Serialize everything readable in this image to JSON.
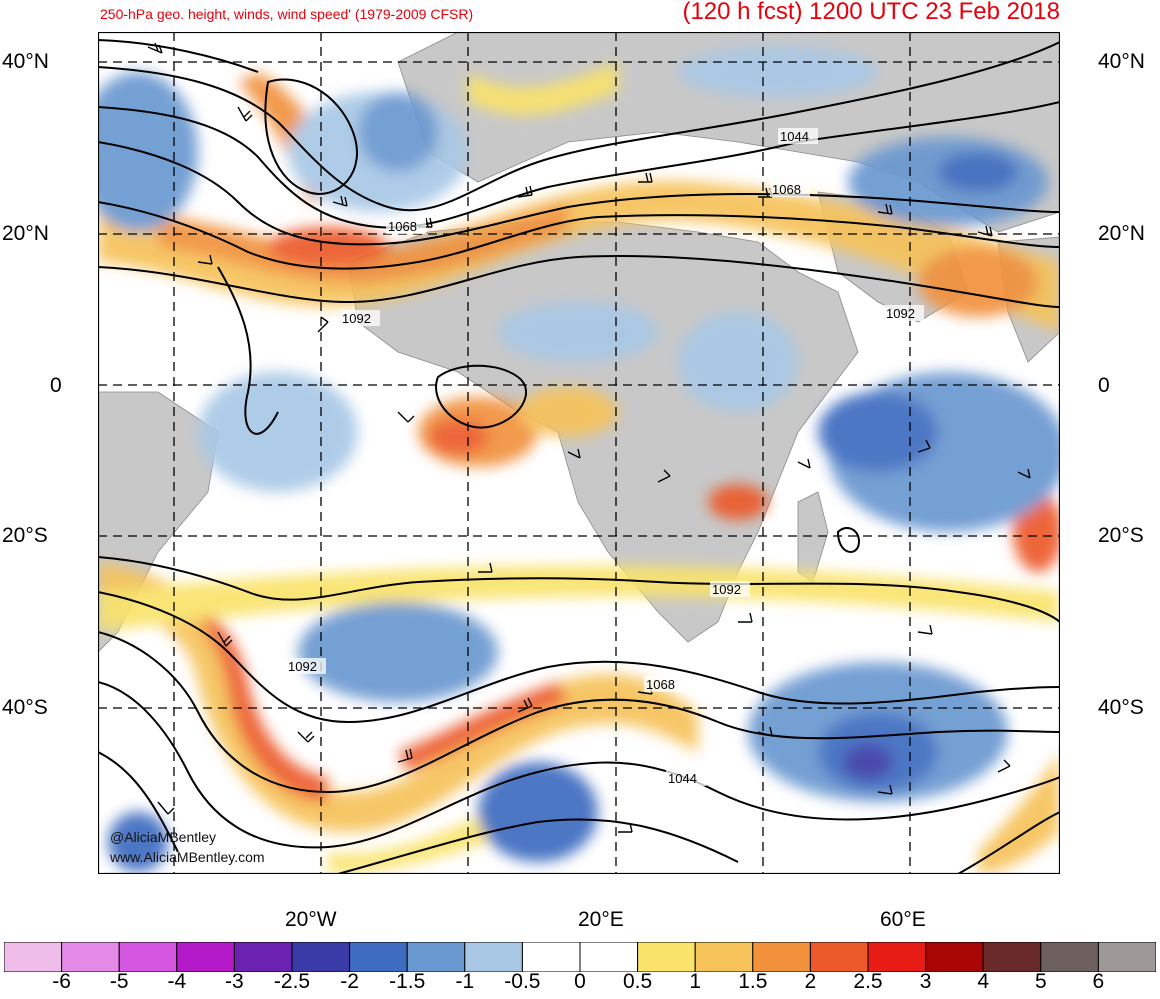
{
  "header": {
    "title_left": "250-hPa geo. height, winds, wind speed' (1979-2009 CFSR)",
    "title_right": "(120 h fcst) 1200 UTC 23 Feb 2018"
  },
  "axes": {
    "lat_labels": [
      "40°N",
      "20°N",
      "0",
      "20°S",
      "40°S"
    ],
    "lon_labels": [
      "20°W",
      "20°E",
      "60°E"
    ]
  },
  "contour_labels": [
    "1044",
    "1068",
    "1068",
    "1092",
    "1092",
    "1092",
    "1092",
    "1068",
    "1044"
  ],
  "credit": {
    "line1": "@AliciaMBentley",
    "line2": "www.AliciaMBentley.com"
  },
  "colorbar": {
    "labels": [
      "-6",
      "-5",
      "-4",
      "-3",
      "-2.5",
      "-2",
      "-1.5",
      "-1",
      "-0.5",
      "0",
      "0.5",
      "1",
      "1.5",
      "2",
      "2.5",
      "3",
      "4",
      "5",
      "6"
    ],
    "colors": [
      "#efbde9",
      "#e58ae8",
      "#d556e0",
      "#b51ac9",
      "#6b22b0",
      "#3a3ba6",
      "#3d6cc0",
      "#6a98d0",
      "#a8c8e6",
      "#ffffff",
      "#ffffff",
      "#f9e36a",
      "#f6c25a",
      "#f1913c",
      "#ec5a2c",
      "#e71c14",
      "#a80505",
      "#6b2a2a",
      "#6f6060",
      "#9e9898"
    ]
  },
  "colors": {
    "title": "#e8000b",
    "land": "#c8c8c8",
    "contour": "#000000"
  }
}
